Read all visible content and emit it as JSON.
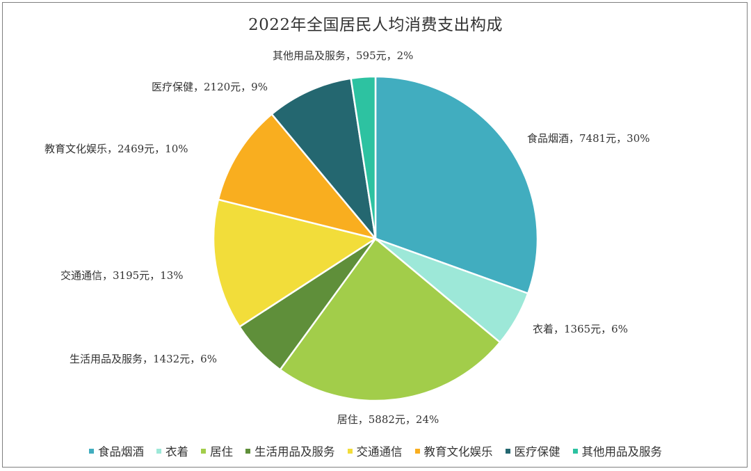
{
  "chart_data": {
    "type": "pie",
    "title": "2022年全国居民人均消费支出构成",
    "unit": "元",
    "legend_position": "bottom",
    "categories": [
      "食品烟酒",
      "衣着",
      "居住",
      "生活用品及服务",
      "交通通信",
      "教育文化娱乐",
      "医疗保健",
      "其他用品及服务"
    ],
    "values": [
      7481,
      1365,
      5882,
      1432,
      3195,
      2469,
      2120,
      595
    ],
    "percents": [
      "30%",
      "6%",
      "24%",
      "6%",
      "13%",
      "10%",
      "9%",
      "2%"
    ],
    "colors": [
      "#41adbf",
      "#9de8d8",
      "#a2cd4a",
      "#5f8f3a",
      "#f2dd3a",
      "#f9ae1f",
      "#246770",
      "#2dc2a1"
    ],
    "data_labels": [
      "食品烟酒，7481元，30%",
      "衣着，1365元，6%",
      "居住，5882元，24%",
      "生活用品及服务，1432元，6%",
      "交通通信，3195元，13%",
      "教育文化娱乐，2469元，10%",
      "医疗保健，2120元，9%",
      "其他用品及服务，595元，2%"
    ]
  }
}
